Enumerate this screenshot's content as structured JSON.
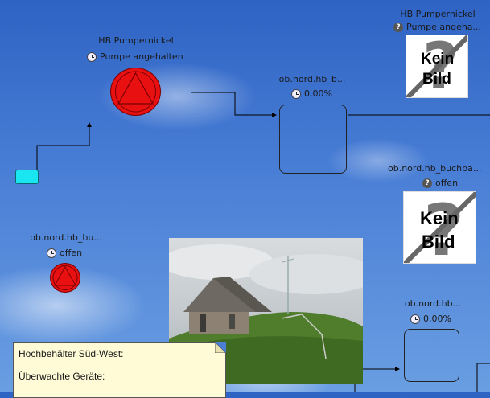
{
  "pump_main": {
    "title": "HB Pumpernickel",
    "status": "Pumpe angehalten",
    "status_icon": "clock-icon",
    "color": "#e81010"
  },
  "pump_top_right": {
    "title": "HB Pumpernickel",
    "status": "Pumpe angeha...",
    "status_icon": "question-icon",
    "image_text_line1": "Kein",
    "image_text_line2": "Bild"
  },
  "tank_top": {
    "title": "ob.nord.hb_b...",
    "value": "0,00%",
    "status_icon": "clock-icon"
  },
  "valve_right": {
    "title": "ob.nord.hb_buchba...",
    "status": "offen",
    "status_icon": "question-icon",
    "image_text_line1": "Kein",
    "image_text_line2": "Bild"
  },
  "valve_left": {
    "title": "ob.nord.hb_bu...",
    "status": "offen",
    "status_icon": "clock-icon"
  },
  "tank_bottom": {
    "title": "ob.nord.hb...",
    "value": "0,00%",
    "status_icon": "clock-icon"
  },
  "photo": {
    "description": "Hochbehälter building photo"
  },
  "note": {
    "line1": "Hochbehälter Süd-West:",
    "line2": "Überwachte Geräte:"
  },
  "colors": {
    "button": "#19e6f0",
    "alarm": "#e81010",
    "note_bg": "#fffbd6"
  }
}
